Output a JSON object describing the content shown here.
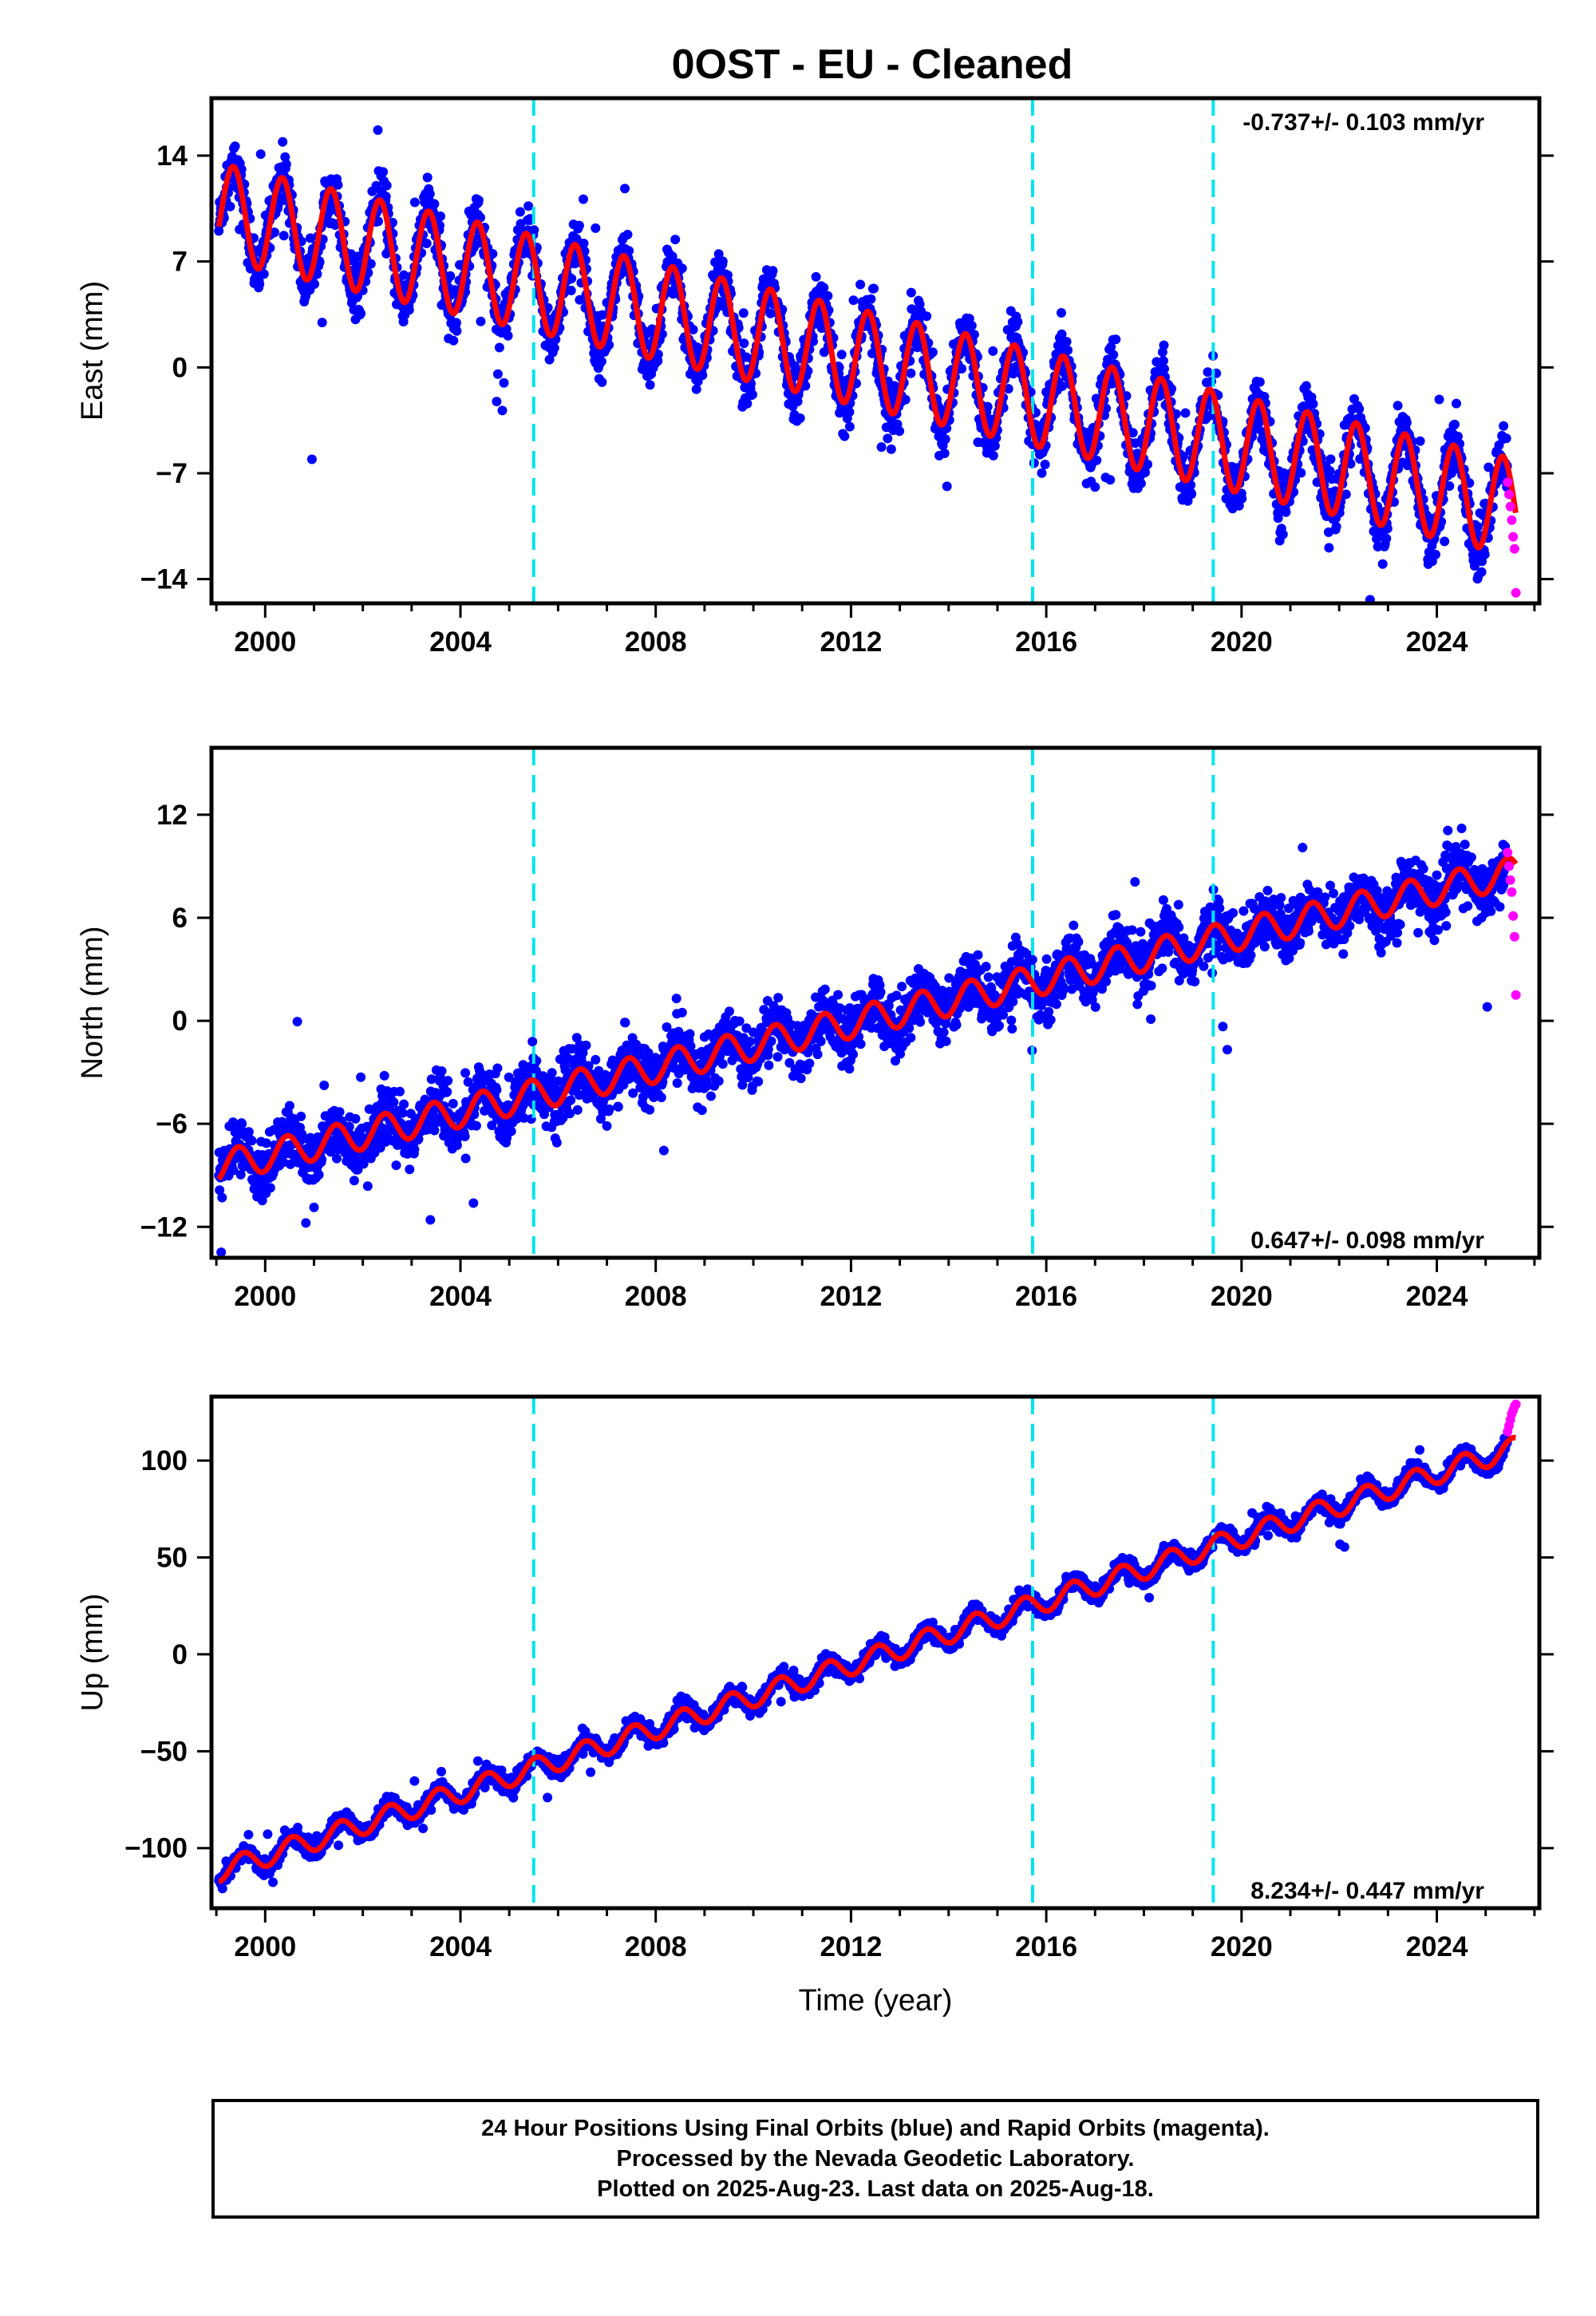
{
  "title": "0OST  - EU - Cleaned",
  "colors": {
    "final_orbits": "#0000ff",
    "rapid_orbits": "#ff00ff",
    "model_fit": "#ff0000",
    "equipment_change_lines": "#00e5ee",
    "frame": "#000000"
  },
  "footer": {
    "line1": "24 Hour Positions Using Final Orbits (blue) and Rapid Orbits (magenta).",
    "line2": "Processed by the Nevada Geodetic Laboratory.",
    "line3": "Plotted on 2025-Aug-23. Last data on 2025-Aug-18."
  },
  "chart_data": [
    {
      "type": "scatter",
      "id": "east",
      "ylabel": "East (mm)",
      "xlabel": "",
      "xlim": [
        1998.9,
        2026.1
      ],
      "ylim": [
        -15.6,
        17.8
      ],
      "x_ticks": [
        2000,
        2004,
        2008,
        2012,
        2016,
        2020,
        2024
      ],
      "y_ticks": [
        14,
        7,
        0,
        -7,
        -14
      ],
      "y_tick_labels": [
        "14",
        "7",
        "0",
        "−7",
        "−14"
      ],
      "rate_label": "-0.737+/- 0.103 mm/yr",
      "rate_label_position": "top-right",
      "equipment_changes": [
        2005.5,
        2015.72,
        2019.42
      ],
      "final_orbits": {
        "t_start": 1999.05,
        "t_end": 2025.45,
        "trend_start": 10.3,
        "trend_rate": -0.737,
        "annual_amplitude": 3.2,
        "annual_phase_peak": 0.35,
        "scatter": 1.7
      },
      "model_fit": {
        "t_start": 1999.05,
        "t_end": 2025.62
      },
      "rapid_orbits": {
        "t_start": 2025.45,
        "t_end": 2025.62,
        "values": [
          -7.6,
          -8.4,
          -9.2,
          -10.1,
          -11.2,
          -12.0,
          -14.9
        ]
      },
      "grid": false
    },
    {
      "type": "scatter",
      "id": "north",
      "ylabel": "North (mm)",
      "xlabel": "",
      "xlim": [
        1998.9,
        2026.1
      ],
      "ylim": [
        -13.8,
        15.9
      ],
      "x_ticks": [
        2000,
        2004,
        2008,
        2012,
        2016,
        2020,
        2024
      ],
      "y_ticks": [
        12,
        6,
        0,
        -6,
        -12
      ],
      "y_tick_labels": [
        "12",
        "6",
        "0",
        "−6",
        "−12"
      ],
      "rate_label": "0.647+/- 0.098 mm/yr",
      "rate_label_position": "bottom-right",
      "equipment_changes": [
        2005.5,
        2015.72,
        2019.42
      ],
      "final_orbits": {
        "t_start": 1999.05,
        "t_end": 2025.45,
        "trend_start": -8.5,
        "trend_rate": 0.647,
        "annual_amplitude": 0.9,
        "annual_phase_peak": 0.45,
        "scatter": 1.5
      },
      "model_fit": {
        "t_start": 1999.05,
        "t_end": 2025.62
      },
      "rapid_orbits": {
        "t_start": 2025.45,
        "t_end": 2025.62,
        "values": [
          9.8,
          9.0,
          8.2,
          7.5,
          6.1,
          4.9,
          1.5
        ]
      },
      "grid": false
    },
    {
      "type": "scatter",
      "id": "up",
      "ylabel": "Up (mm)",
      "xlabel": "Time (year)",
      "xlim": [
        1998.9,
        2026.1
      ],
      "ylim": [
        -131,
        133
      ],
      "x_ticks": [
        2000,
        2004,
        2008,
        2012,
        2016,
        2020,
        2024
      ],
      "y_ticks": [
        100,
        50,
        0,
        -50,
        -100
      ],
      "y_tick_labels": [
        "100",
        "50",
        "0",
        "−50",
        "−100"
      ],
      "rate_label": "8.234+/- 0.447 mm/yr",
      "rate_label_position": "bottom-right",
      "equipment_changes": [
        2005.5,
        2015.72,
        2019.42
      ],
      "final_orbits": {
        "t_start": 1999.05,
        "t_end": 2025.45,
        "trend_start": -112,
        "trend_rate": 8.234,
        "annual_amplitude": 5.5,
        "annual_phase_peak": 0.55,
        "scatter": 4.0
      },
      "model_fit": {
        "t_start": 1999.05,
        "t_end": 2025.62
      },
      "rapid_orbits": {
        "t_start": 2025.45,
        "t_end": 2025.62,
        "values": [
          115,
          118,
          121,
          124,
          126,
          128,
          129
        ]
      },
      "grid": false
    }
  ]
}
